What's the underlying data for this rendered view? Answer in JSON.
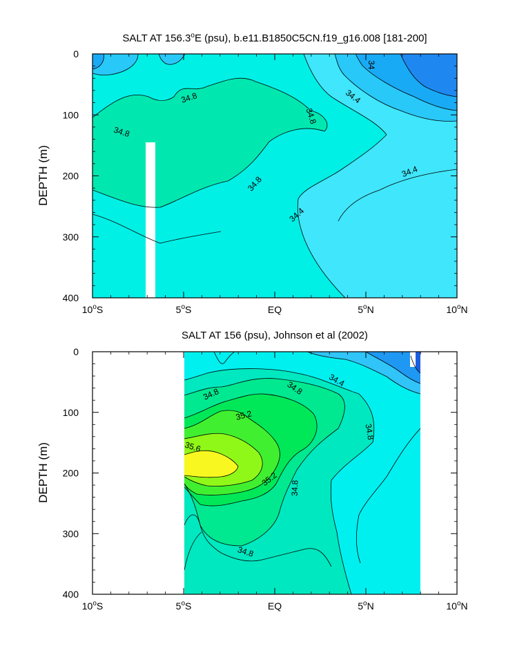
{
  "chart_data": [
    {
      "type": "contour",
      "title": "SALT AT 156.3°E (psu), b.e11.B1850C5CN.f19_g16.008 [181-200]",
      "title_parts": {
        "pre": "SALT AT 156.3",
        "sup": "o",
        "post": "E (psu), b.e11.B1850C5CN.f19_g16.008 [181-200]"
      },
      "xlabel": "",
      "ylabel": "DEPTH (m)",
      "xlim": [
        -10,
        10
      ],
      "ylim": [
        400,
        0
      ],
      "x_ticks": [
        {
          "value": -10,
          "num": "10",
          "hemi": "S"
        },
        {
          "value": -5,
          "num": "5",
          "hemi": "S"
        },
        {
          "value": 0,
          "num": "EQ",
          "hemi": ""
        },
        {
          "value": 5,
          "num": "5",
          "hemi": "N"
        },
        {
          "value": 10,
          "num": "10",
          "hemi": "N"
        }
      ],
      "y_ticks": [
        0,
        100,
        200,
        300,
        400
      ],
      "y_tick_labels": [
        "0",
        "100",
        "200",
        "300",
        "400"
      ],
      "fill_colors": {
        "33.8-34.0": "#1e88f0",
        "34.0-34.2": "#19aaf5",
        "34.2-34.4": "#28c8f8",
        "34.4-34.6": "#40e6fb",
        "34.6-34.8": "#00f0e6",
        "34.8-35.0": "#00e8b0"
      },
      "missing_data": [
        {
          "x": [
            -7.1,
            -6.6
          ],
          "depth": [
            145,
            400
          ]
        }
      ],
      "contour_labels": [
        {
          "text": "34",
          "x": 5.3,
          "depth": 18,
          "rotation": 90
        },
        {
          "text": "34.4",
          "x": 4.3,
          "depth": 70,
          "rotation": 38
        },
        {
          "text": "34.8",
          "x": -4.7,
          "depth": 72,
          "rotation": -18
        },
        {
          "text": "34.8",
          "x": 2.0,
          "depth": 102,
          "rotation": 72
        },
        {
          "text": "34.8",
          "x": -8.4,
          "depth": 128,
          "rotation": 18
        },
        {
          "text": "34.8",
          "x": -1.1,
          "depth": 213,
          "rotation": -48
        },
        {
          "text": "34.4",
          "x": 7.4,
          "depth": 193,
          "rotation": -22
        },
        {
          "text": "34.4",
          "x": 1.2,
          "depth": 264,
          "rotation": -42
        }
      ]
    },
    {
      "type": "contour",
      "title": "SALT AT 156 (psu), Johnson et al (2002)",
      "xlabel": "",
      "ylabel": "DEPTH (m)",
      "xlim": [
        -10,
        10
      ],
      "ylim": [
        400,
        0
      ],
      "x_ticks": [
        {
          "value": -10,
          "num": "10",
          "hemi": "S"
        },
        {
          "value": -5,
          "num": "5",
          "hemi": "S"
        },
        {
          "value": 0,
          "num": "EQ",
          "hemi": ""
        },
        {
          "value": 5,
          "num": "5",
          "hemi": "N"
        },
        {
          "value": 10,
          "num": "10",
          "hemi": "N"
        }
      ],
      "y_ticks": [
        0,
        100,
        200,
        300,
        400
      ],
      "y_tick_labels": [
        "0",
        "100",
        "200",
        "300",
        "400"
      ],
      "data_extent": {
        "x": [
          -5,
          8
        ],
        "depth": [
          8,
          400
        ]
      },
      "fill_colors": {
        "33.8-34.0": "#1a5fe0",
        "34.0-34.2": "#1e98f2",
        "34.2-34.4": "#30c4f8",
        "34.4-34.6": "#00f0f0",
        "34.6-34.8": "#00e8c0",
        "34.8-35.0": "#00e890",
        "35.0-35.2": "#00e858",
        "35.2-35.4": "#40f030",
        "35.4-35.6": "#90f818",
        "35.6-35.8": "#f8f820"
      },
      "contour_labels": [
        {
          "text": "34.4",
          "x": 3.4,
          "depth": 47,
          "rotation": 30
        },
        {
          "text": "34.8",
          "x": 1.1,
          "depth": 60,
          "rotation": 35
        },
        {
          "text": "34.8",
          "x": -3.5,
          "depth": 70,
          "rotation": -25
        },
        {
          "text": "35.2",
          "x": -1.7,
          "depth": 105,
          "rotation": -15
        },
        {
          "text": "34.8",
          "x": 5.2,
          "depth": 132,
          "rotation": 80
        },
        {
          "text": "35.6",
          "x": -4.5,
          "depth": 157,
          "rotation": 18
        },
        {
          "text": "35.2",
          "x": -0.3,
          "depth": 210,
          "rotation": -38
        },
        {
          "text": "34.8",
          "x": 1.1,
          "depth": 225,
          "rotation": -88
        },
        {
          "text": "34.8",
          "x": -1.6,
          "depth": 330,
          "rotation": 18
        }
      ]
    }
  ]
}
